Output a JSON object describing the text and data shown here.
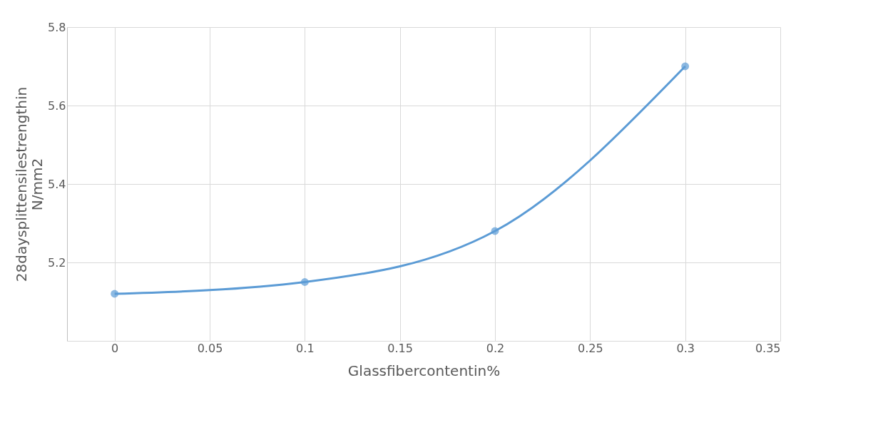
{
  "chart_data": {
    "type": "line",
    "xlabel": "Glassfibercontentin%",
    "ylabel": "28daysplittensilestrengthin N/mm2",
    "x": [
      0,
      0.1,
      0.2,
      0.3
    ],
    "series": [
      {
        "color": "#5b9bd5",
        "values": [
          5.12,
          5.15,
          5.28,
          5.7
        ]
      }
    ],
    "xlim": [
      -0.025,
      0.35
    ],
    "xticks": [
      0,
      0.05,
      0.1,
      0.15,
      0.2,
      0.25,
      0.3,
      0.35
    ],
    "ylim": [
      5.0,
      5.8
    ],
    "yticks": [
      {
        "value": 5.0,
        "label": null
      },
      5.2,
      5.4,
      5.6,
      5.8
    ],
    "grid": true,
    "marker": "circle",
    "line_style": "solid"
  }
}
